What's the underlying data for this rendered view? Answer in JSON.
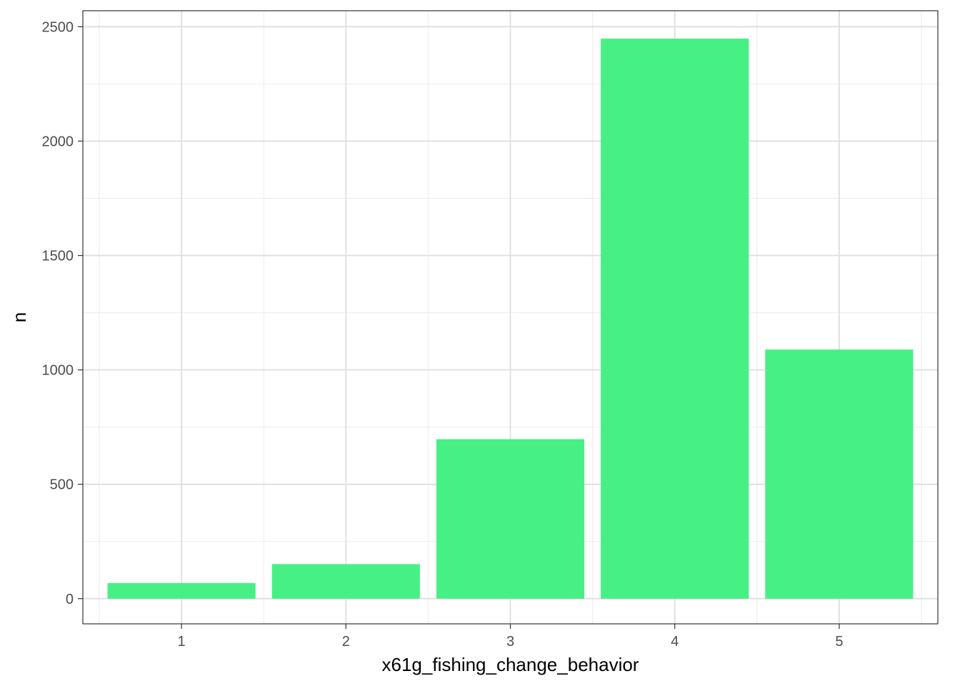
{
  "chart_data": {
    "type": "bar",
    "categories": [
      "1",
      "2",
      "3",
      "4",
      "5"
    ],
    "values": [
      68,
      151,
      697,
      2448,
      1089
    ],
    "xlabel": "x61g_fishing_change_behavior",
    "ylabel": "n",
    "ylim": [
      -110,
      2570
    ],
    "yticks": [
      0,
      500,
      1000,
      1500,
      2000,
      2500
    ],
    "y_minor_ticks": [
      250,
      750,
      1250,
      1750,
      2250
    ],
    "grid": true,
    "bar_color": "#47F085",
    "theme": "bw"
  }
}
